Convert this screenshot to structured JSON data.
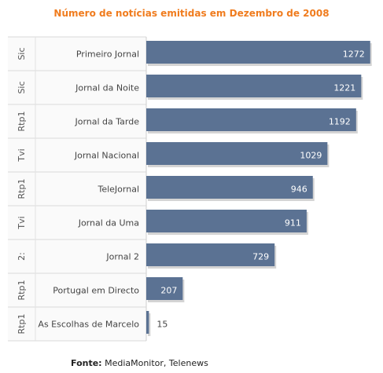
{
  "chart_data": {
    "type": "bar",
    "orientation": "horizontal",
    "title": "Número de notícias emitidas em Dezembro de 2008",
    "categories": [
      "Primeiro Jornal",
      "Jornal da Noite",
      "Jornal da Tarde",
      "Jornal Nacional",
      "TeleJornal",
      "Jornal da Uma",
      "Jornal 2",
      "Portugal em Directo",
      "As Escolhas de Marcelo"
    ],
    "groups": [
      "Sic",
      "Sic",
      "Rtp1",
      "Tvi",
      "Rtp1",
      "Tvi",
      "2:",
      "Rtp1",
      "Rtp1"
    ],
    "values": [
      1272,
      1221,
      1192,
      1029,
      946,
      911,
      729,
      207,
      15
    ],
    "xlim": [
      0,
      1300
    ],
    "grid": false,
    "bar_color": "#5b7293",
    "title_color": "#f07c1e"
  },
  "footer": {
    "label": "Fonte:",
    "text": "MediaMonitor, Telenews"
  }
}
